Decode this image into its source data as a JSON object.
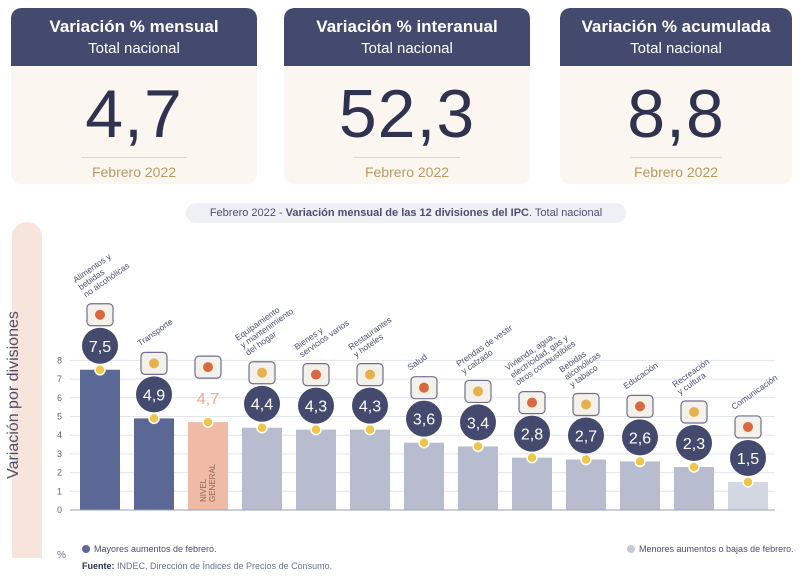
{
  "cards": [
    {
      "title": "Variación % mensual",
      "subtitle": "Total nacional",
      "value": "4,7",
      "period": "Febrero 2022"
    },
    {
      "title": "Variación % interanual",
      "subtitle": "Total nacional",
      "value": "52,3",
      "period": "Febrero 2022"
    },
    {
      "title": "Variación % acumulada",
      "subtitle": "Total nacional",
      "value": "8,8",
      "period": "Febrero 2022"
    }
  ],
  "chart_title": {
    "part1": "Febrero 2022 - ",
    "part2": "Variación mensual de las 12 divisiones del IPC",
    "part3": ". Total nacional"
  },
  "chart_data": {
    "type": "bar",
    "title": "Febrero 2022 - Variación mensual de las 12 divisiones del IPC. Total nacional",
    "ylabel": "Variación por divisiones",
    "yunit": "%",
    "ylim": [
      0,
      8
    ],
    "yticks": [
      0,
      1,
      2,
      3,
      4,
      5,
      6,
      7,
      8
    ],
    "categories": [
      "Alimentos y bebidas no alcohólicas",
      "Transporte",
      "Nivel general",
      "Equipamiento y mantenimiento del hogar",
      "Bienes y servicios varios",
      "Restaurantes y hoteles",
      "Salud",
      "Prendas de vestir y calzado",
      "Vivienda, agua, electricidad, gas y otros combustibles",
      "Bebidas alcohólicas y tabaco",
      "Educación",
      "Recreación y cultura",
      "Comunicación"
    ],
    "label_lines": [
      [
        "Alimentos y",
        "bebidas",
        "no alcohólicas"
      ],
      [
        "Transporte"
      ],
      [
        "NIVEL",
        "GENERAL"
      ],
      [
        "Equipamiento",
        "y mantenimiento",
        "del hogar"
      ],
      [
        "Bienes y",
        "servicios varios"
      ],
      [
        "Restaurantes",
        "y hoteles"
      ],
      [
        "Salud"
      ],
      [
        "Prendas de vestir",
        "y calzado"
      ],
      [
        "Vivienda, agua,",
        "electricidad, gas y",
        "otros combustibles"
      ],
      [
        "Bebidas",
        "alcohólicas",
        "y tabaco"
      ],
      [
        "Educación"
      ],
      [
        "Recreación",
        "y cultura"
      ],
      [
        "Comunicación"
      ]
    ],
    "values": [
      7.5,
      4.9,
      4.7,
      4.4,
      4.3,
      4.3,
      3.6,
      3.4,
      2.8,
      2.7,
      2.6,
      2.3,
      1.5
    ],
    "value_labels": [
      "7,5",
      "4,9",
      "4,7",
      "4,4",
      "4,3",
      "4,3",
      "3,6",
      "3,4",
      "2,8",
      "2,7",
      "2,6",
      "2,3",
      "1,5"
    ],
    "groups": [
      "mayores",
      "mayores",
      "general",
      "other",
      "other",
      "other",
      "other",
      "other",
      "other",
      "other",
      "other",
      "other",
      "menores"
    ],
    "icons": [
      "food-icon",
      "car-icon",
      "basket-icon",
      "furniture-icon",
      "brush-icon",
      "plate-icon",
      "medical-cross-icon",
      "shirt-icon",
      "lightbulb-icon",
      "glass-icon",
      "book-icon",
      "umbrella-icon",
      "phone-icon"
    ],
    "colors": {
      "mayores": "#5b6895",
      "general": "#efbba6",
      "other": "#b7bdce",
      "menores": "#d3d7e2",
      "badge": "#434a6e",
      "marker": "#f0c64a"
    }
  },
  "legend": {
    "left": "Mayores aumentos de febrero.",
    "right": "Menores aumentos o bajas de febrero."
  },
  "source": {
    "label": "Fuente:",
    "text": " INDEC, Dirección de Índices de Precios de Consumo."
  }
}
